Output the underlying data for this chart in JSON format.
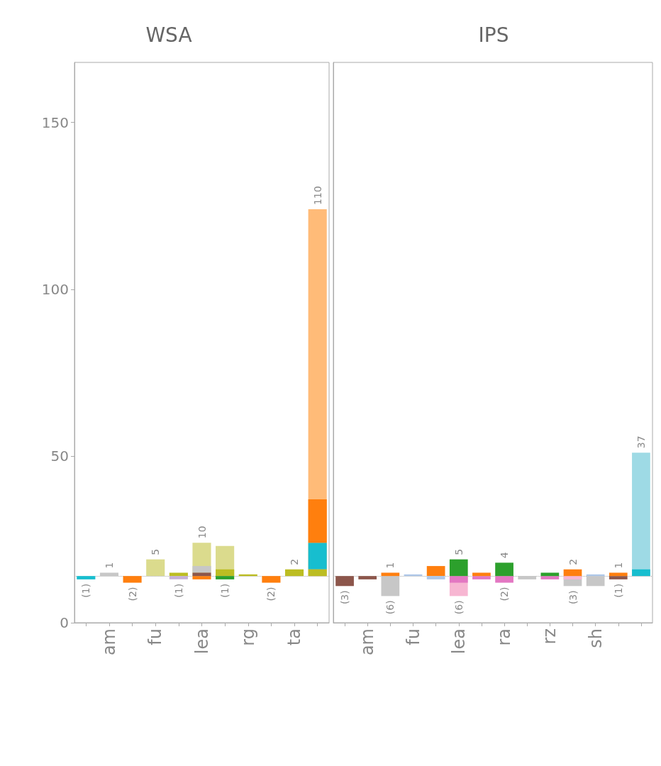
{
  "chart_data": [
    {
      "type": "bar",
      "title": "WSA",
      "categories": [
        null,
        "am",
        null,
        "fu",
        null,
        "lea",
        null,
        "rg",
        null,
        "ta",
        null
      ],
      "ylim": [
        0,
        168
      ],
      "yticks": [
        0,
        50,
        100,
        150
      ],
      "grid": false,
      "ref_lines": [
        {
          "axis": "y",
          "value": 14,
          "line_style": "dotted",
          "color": "#aaaaaa"
        }
      ],
      "series": [
        {
          "color": "#ffbb78",
          "base": [
            null,
            null,
            null,
            null,
            null,
            null,
            null,
            null,
            null,
            null,
            14
          ],
          "values": [
            null,
            null,
            null,
            null,
            null,
            null,
            null,
            null,
            null,
            null,
            110
          ],
          "value_labels": [
            null,
            null,
            null,
            null,
            null,
            null,
            null,
            null,
            null,
            null,
            "110"
          ]
        },
        {
          "color": "#dbdb8d",
          "base": [
            null,
            null,
            null,
            14,
            null,
            14,
            14,
            null,
            null,
            null,
            null
          ],
          "values": [
            null,
            null,
            null,
            5,
            null,
            10,
            9,
            null,
            null,
            null,
            null
          ],
          "value_labels": [
            null,
            null,
            null,
            "5",
            null,
            "10",
            null,
            null,
            null,
            null,
            null
          ]
        },
        {
          "color": "#17becf",
          "base": [
            14,
            null,
            null,
            null,
            null,
            null,
            null,
            null,
            null,
            null,
            16
          ],
          "values": [
            -1,
            null,
            null,
            null,
            null,
            null,
            null,
            null,
            null,
            null,
            8
          ],
          "value_labels": [
            "(1)",
            null,
            null,
            null,
            null,
            null,
            null,
            null,
            null,
            null,
            null
          ]
        },
        {
          "color": "#ff7f0e",
          "base": [
            null,
            null,
            14,
            null,
            null,
            14,
            null,
            null,
            14,
            null,
            24
          ],
          "values": [
            null,
            null,
            -2,
            null,
            null,
            -1,
            null,
            null,
            -2,
            null,
            13
          ],
          "value_labels": [
            null,
            null,
            "(2)",
            null,
            null,
            null,
            null,
            null,
            "(2)",
            null,
            null
          ]
        },
        {
          "color": "#c7c7c7",
          "base": [
            null,
            14,
            null,
            null,
            null,
            15,
            null,
            null,
            null,
            null,
            null
          ],
          "values": [
            null,
            1,
            null,
            null,
            null,
            2,
            null,
            null,
            null,
            null,
            null
          ],
          "value_labels": [
            null,
            "1",
            null,
            null,
            null,
            null,
            null,
            null,
            null,
            null,
            null
          ]
        },
        {
          "color": "#8c564b",
          "base": [
            null,
            null,
            null,
            null,
            null,
            14,
            null,
            null,
            null,
            null,
            null
          ],
          "values": [
            null,
            null,
            null,
            null,
            null,
            1,
            null,
            null,
            null,
            null,
            null
          ]
        },
        {
          "color": "#bcbd22",
          "base": [
            null,
            null,
            null,
            null,
            14,
            null,
            14,
            14,
            null,
            14,
            14
          ],
          "values": [
            null,
            null,
            null,
            null,
            1,
            null,
            2,
            0.5,
            null,
            2,
            2
          ],
          "value_labels": [
            null,
            null,
            null,
            null,
            null,
            null,
            null,
            null,
            null,
            "2",
            null
          ]
        },
        {
          "color": "#2ca02c",
          "base": [
            null,
            null,
            null,
            null,
            null,
            null,
            14,
            null,
            null,
            null,
            null
          ],
          "values": [
            null,
            null,
            null,
            null,
            null,
            null,
            -1,
            null,
            null,
            null,
            null
          ],
          "value_labels": [
            null,
            null,
            null,
            null,
            null,
            null,
            "(1)",
            null,
            null,
            null,
            null
          ]
        },
        {
          "color": "#c5b0d5",
          "base": [
            null,
            null,
            null,
            null,
            14,
            null,
            null,
            null,
            null,
            null,
            null
          ],
          "values": [
            null,
            null,
            null,
            null,
            -1,
            null,
            null,
            null,
            null,
            null,
            null
          ],
          "value_labels": [
            null,
            null,
            null,
            null,
            "(1)",
            null,
            null,
            null,
            null,
            null,
            null
          ]
        }
      ]
    },
    {
      "type": "bar",
      "title": "IPS",
      "tick_labels": "x",
      "categories": [
        null,
        "am",
        null,
        "fu",
        null,
        "lea",
        null,
        "ra",
        null,
        "rz",
        null,
        "sh",
        null,
        null
      ],
      "ylim": [
        0,
        168
      ],
      "yticks": [
        0,
        50,
        100,
        150
      ],
      "grid": false,
      "ref_lines": [
        {
          "axis": "y",
          "value": 14,
          "line_style": "dotted",
          "color": "#aaaaaa"
        }
      ],
      "series": [
        {
          "color": "#9edae5",
          "base": [
            null,
            null,
            null,
            null,
            null,
            null,
            null,
            null,
            null,
            null,
            null,
            null,
            null,
            14
          ],
          "values": [
            null,
            null,
            null,
            null,
            null,
            null,
            null,
            null,
            null,
            null,
            null,
            null,
            null,
            37
          ],
          "value_labels": [
            null,
            null,
            null,
            null,
            null,
            null,
            null,
            null,
            null,
            null,
            null,
            null,
            null,
            "37"
          ]
        },
        {
          "color": "#17becf",
          "base": [
            null,
            null,
            null,
            null,
            null,
            null,
            null,
            null,
            null,
            null,
            null,
            null,
            null,
            14
          ],
          "values": [
            null,
            null,
            null,
            null,
            null,
            null,
            null,
            null,
            null,
            null,
            null,
            null,
            null,
            2
          ]
        },
        {
          "color": "#f7b6d2",
          "base": [
            null,
            null,
            null,
            null,
            null,
            14,
            null,
            null,
            null,
            null,
            null,
            null,
            null,
            null
          ],
          "values": [
            null,
            null,
            null,
            null,
            null,
            -6,
            null,
            null,
            null,
            null,
            null,
            null,
            null,
            null
          ],
          "value_labels": [
            null,
            null,
            null,
            null,
            null,
            "(6)",
            null,
            null,
            null,
            null,
            null,
            null,
            null,
            null
          ]
        },
        {
          "color": "#c7c7c7",
          "base": [
            null,
            null,
            14,
            null,
            null,
            null,
            null,
            null,
            14,
            null,
            14,
            14,
            null,
            null
          ],
          "values": [
            null,
            null,
            -6,
            null,
            null,
            null,
            null,
            null,
            -1,
            null,
            -3,
            -3,
            null,
            null
          ],
          "value_labels": [
            null,
            null,
            "(6)",
            null,
            null,
            null,
            null,
            null,
            null,
            null,
            "(3)",
            null,
            null,
            null
          ]
        },
        {
          "color": "#e377c2",
          "base": [
            null,
            null,
            null,
            null,
            null,
            14,
            14,
            14,
            null,
            14,
            null,
            null,
            null,
            null
          ],
          "values": [
            null,
            null,
            null,
            null,
            null,
            -2,
            -1,
            -2,
            null,
            -1,
            null,
            null,
            null,
            null
          ],
          "value_labels": [
            null,
            null,
            null,
            null,
            null,
            null,
            null,
            "(2)",
            null,
            null,
            null,
            null,
            null,
            null
          ]
        },
        {
          "color": "#f7b6d2",
          "base": [
            null,
            null,
            null,
            null,
            null,
            null,
            null,
            null,
            null,
            null,
            14,
            null,
            null,
            null
          ],
          "values": [
            null,
            null,
            null,
            null,
            null,
            null,
            null,
            null,
            null,
            null,
            -1,
            null,
            null,
            null
          ]
        },
        {
          "color": "#8c564b",
          "base": [
            14,
            14,
            null,
            null,
            null,
            null,
            null,
            null,
            null,
            null,
            null,
            null,
            14,
            null
          ],
          "values": [
            -3,
            -1,
            null,
            null,
            null,
            null,
            null,
            null,
            null,
            null,
            null,
            null,
            -1,
            null
          ],
          "value_labels": [
            "(3)",
            null,
            null,
            null,
            null,
            null,
            null,
            null,
            null,
            null,
            null,
            null,
            "(1)",
            null
          ]
        },
        {
          "color": "#ff7f0e",
          "base": [
            null,
            null,
            14,
            null,
            14,
            null,
            14,
            null,
            null,
            null,
            14,
            null,
            14,
            null
          ],
          "values": [
            null,
            null,
            1,
            null,
            3,
            null,
            1,
            null,
            null,
            null,
            2,
            null,
            1,
            null
          ],
          "value_labels": [
            null,
            null,
            "1",
            null,
            null,
            null,
            null,
            null,
            null,
            null,
            "2",
            null,
            "1",
            null
          ]
        },
        {
          "color": "#aec7e8",
          "base": [
            null,
            null,
            null,
            14,
            14,
            null,
            null,
            null,
            null,
            null,
            null,
            14,
            null,
            null
          ],
          "values": [
            null,
            null,
            null,
            0.5,
            -1,
            null,
            null,
            null,
            null,
            null,
            null,
            0.5,
            null,
            null
          ]
        },
        {
          "color": "#2ca02c",
          "base": [
            null,
            null,
            null,
            null,
            null,
            14,
            null,
            14,
            null,
            14,
            null,
            null,
            null,
            null
          ],
          "values": [
            null,
            null,
            null,
            null,
            null,
            5,
            null,
            4,
            null,
            1,
            null,
            null,
            null,
            null
          ],
          "value_labels": [
            null,
            null,
            null,
            null,
            null,
            "5",
            null,
            "4",
            null,
            null,
            null,
            null,
            null,
            null
          ]
        }
      ]
    }
  ]
}
